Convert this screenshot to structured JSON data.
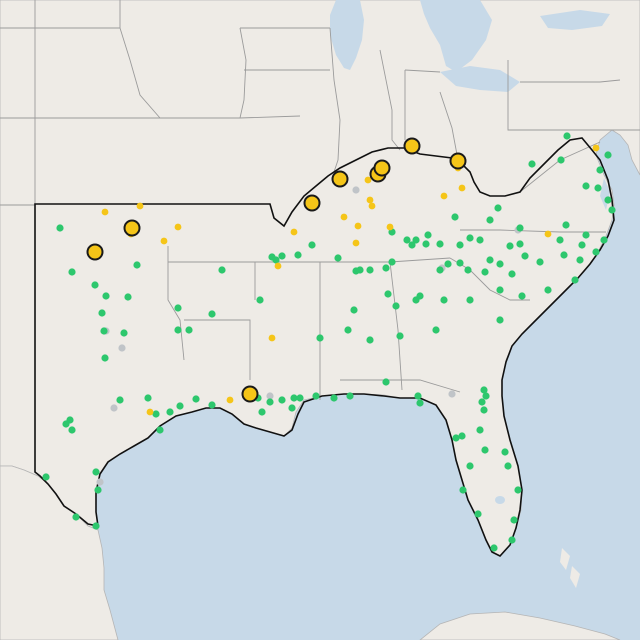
{
  "map": {
    "colors": {
      "land": "#eeebe6",
      "water": "#c7d9e8",
      "border": "#9b9b9b",
      "region_outline": "#111111",
      "green_marker": "#2dc76d",
      "yellow_marker": "#f5c518",
      "gray_marker": "#c0c4c8",
      "large_marker_stroke": "#1a1a1a"
    },
    "marker_categories": [
      "green",
      "yellow",
      "gray",
      "yellow-large"
    ]
  }
}
